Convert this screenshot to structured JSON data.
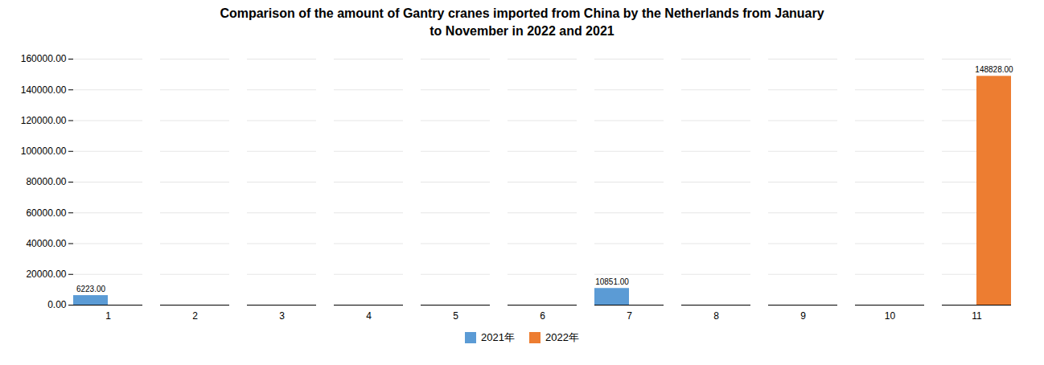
{
  "chart_data": {
    "type": "bar",
    "title": "Comparison of the amount of Gantry cranes imported from China by the Netherlands from January\nto November in 2022 and 2021",
    "categories": [
      "1",
      "2",
      "3",
      "4",
      "5",
      "6",
      "7",
      "8",
      "9",
      "10",
      "11"
    ],
    "series": [
      {
        "name": "2021年",
        "color": "#5b9bd5",
        "values": [
          6223,
          0,
          0,
          0,
          0,
          0,
          10851,
          0,
          0,
          0,
          0
        ],
        "value_labels": [
          "6223.00",
          null,
          null,
          null,
          null,
          null,
          "10851.00",
          null,
          null,
          null,
          null
        ]
      },
      {
        "name": "2022年",
        "color": "#ed7d31",
        "values": [
          0,
          0,
          0,
          0,
          0,
          0,
          0,
          0,
          0,
          0,
          148828
        ],
        "value_labels": [
          null,
          null,
          null,
          null,
          null,
          null,
          null,
          null,
          null,
          null,
          "148828.00"
        ]
      }
    ],
    "ylim": [
      0,
      160000
    ],
    "yticks": [
      {
        "value": 0,
        "label": "0.00"
      },
      {
        "value": 20000,
        "label": "20000.00"
      },
      {
        "value": 40000,
        "label": "40000.00"
      },
      {
        "value": 60000,
        "label": "60000.00"
      },
      {
        "value": 80000,
        "label": "80000.00"
      },
      {
        "value": 100000,
        "label": "100000.00"
      },
      {
        "value": 120000,
        "label": "120000.00"
      },
      {
        "value": 140000,
        "label": "140000.00"
      },
      {
        "value": 160000,
        "label": "160000.00"
      }
    ],
    "grid": true,
    "legend": "bottom",
    "data_labels": true
  }
}
